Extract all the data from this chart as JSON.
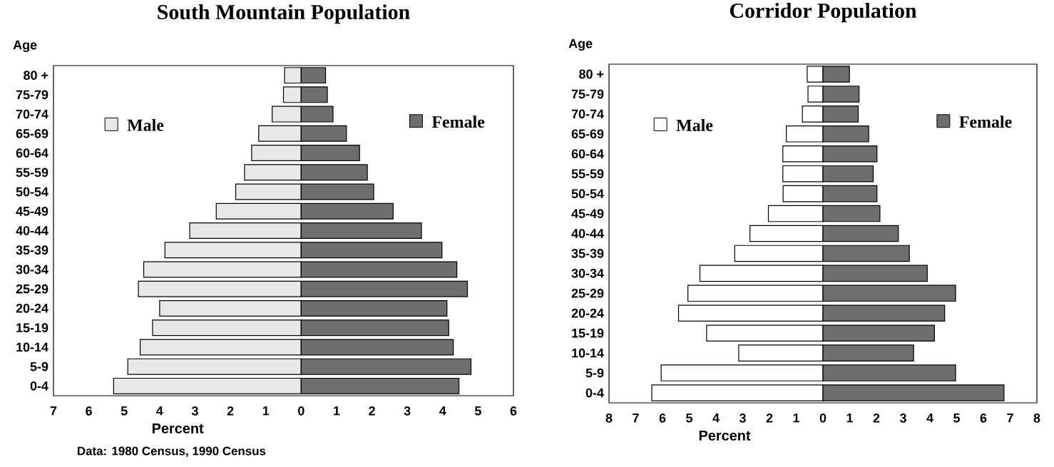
{
  "chart_data": [
    {
      "type": "bar",
      "orientation": "horizontal",
      "stacked": true,
      "legend": "top",
      "title": "South Mountain Population",
      "xlabel": "Percent",
      "ylabel": "Age",
      "categories": [
        "80 +",
        "75-79",
        "70-74",
        "65-69",
        "60-64",
        "55-59",
        "50-54",
        "45-49",
        "40-44",
        "35-39",
        "30-34",
        "25-29",
        "20-24",
        "15-19",
        "10-14",
        "5-9",
        "0-4"
      ],
      "series": [
        {
          "name": "Male",
          "color": "#e8e8e8",
          "values": [
            -0.47,
            -0.5,
            -0.82,
            -1.2,
            -1.4,
            -1.6,
            -1.85,
            -2.4,
            -3.15,
            -3.85,
            -4.45,
            -4.6,
            -4.0,
            -4.2,
            -4.55,
            -4.9,
            -5.3
          ]
        },
        {
          "name": "Female",
          "color": "#6e6e6e",
          "values": [
            0.69,
            0.74,
            0.9,
            1.28,
            1.65,
            1.87,
            2.05,
            2.6,
            3.4,
            3.98,
            4.4,
            4.7,
            4.12,
            4.17,
            4.3,
            4.8,
            4.46
          ]
        }
      ],
      "xlim": [
        -7,
        6
      ],
      "xticks": [
        {
          "value": -7,
          "label": "7"
        },
        {
          "value": -6,
          "label": "6"
        },
        {
          "value": -5,
          "label": "5"
        },
        {
          "value": -4,
          "label": "4"
        },
        {
          "value": -3,
          "label": "3"
        },
        {
          "value": -2,
          "label": "2"
        },
        {
          "value": -1,
          "label": "1"
        },
        0,
        1,
        2,
        3,
        4,
        5,
        6
      ],
      "annotations": [
        "Data: 1980 Census, 1990 Census"
      ]
    },
    {
      "type": "bar",
      "orientation": "horizontal",
      "stacked": true,
      "legend": "top",
      "title": "Corridor Population",
      "xlabel": "Percent",
      "ylabel": "Age",
      "categories": [
        "80 +",
        "75-79",
        "70-74",
        "65-69",
        "60-64",
        "55-59",
        "50-54",
        "45-49",
        "40-44",
        "35-39",
        "30-34",
        "25-29",
        "20-24",
        "15-19",
        "10-14",
        "5-9",
        "0-4"
      ],
      "series": [
        {
          "name": "Male",
          "color": "#ffffff",
          "values": [
            -0.59,
            -0.56,
            -0.77,
            -1.37,
            -1.5,
            -1.5,
            -1.49,
            -2.04,
            -2.73,
            -3.3,
            -4.6,
            -5.05,
            -5.4,
            -4.35,
            -3.15,
            -6.05,
            -6.4
          ]
        },
        {
          "name": "Female",
          "color": "#6e6e6e",
          "values": [
            0.99,
            1.35,
            1.32,
            1.71,
            2.02,
            1.88,
            2.02,
            2.13,
            2.82,
            3.23,
            3.9,
            4.96,
            4.55,
            4.17,
            3.39,
            4.96,
            6.77
          ]
        }
      ],
      "xlim": [
        -8,
        8
      ],
      "xticks": [
        {
          "value": -8,
          "label": "8"
        },
        {
          "value": -7,
          "label": "7"
        },
        {
          "value": -6,
          "label": "6"
        },
        {
          "value": -5,
          "label": "5"
        },
        {
          "value": -4,
          "label": "4"
        },
        {
          "value": -3,
          "label": "3"
        },
        {
          "value": -2,
          "label": "2"
        },
        {
          "value": -1,
          "label": "1"
        },
        0,
        1,
        2,
        3,
        4,
        5,
        6,
        7,
        8
      ]
    }
  ]
}
